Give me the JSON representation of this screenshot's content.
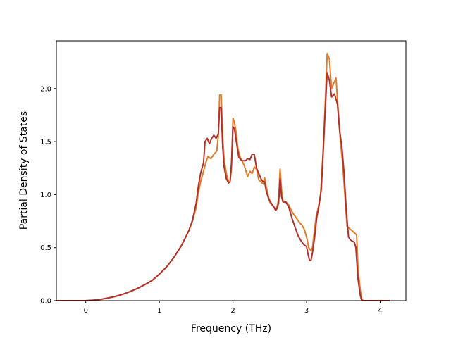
{
  "chart_data": {
    "type": "line",
    "title": "",
    "xlabel": "Frequency (THz)",
    "ylabel": "Partial Density of States",
    "xlim": [
      -0.4,
      4.35
    ],
    "ylim": [
      0.0,
      2.45
    ],
    "xticks": [
      {
        "value": 0,
        "label": "0"
      },
      {
        "value": 1,
        "label": "1"
      },
      {
        "value": 2,
        "label": "2"
      },
      {
        "value": 3,
        "label": "3"
      },
      {
        "value": 4,
        "label": "4"
      }
    ],
    "yticks": [
      {
        "value": 0.0,
        "label": "0.0"
      },
      {
        "value": 0.5,
        "label": "0.5"
      },
      {
        "value": 1.0,
        "label": "1.0"
      },
      {
        "value": 1.5,
        "label": "1.5"
      },
      {
        "value": 2.0,
        "label": "2.0"
      }
    ],
    "grid": false,
    "legend": "none",
    "series": [
      {
        "color": "#e07b2a",
        "points": [
          [
            -0.4,
            0
          ],
          [
            0,
            0
          ],
          [
            0.1,
            0.005
          ],
          [
            0.2,
            0.012
          ],
          [
            0.3,
            0.025
          ],
          [
            0.4,
            0.04
          ],
          [
            0.5,
            0.06
          ],
          [
            0.6,
            0.085
          ],
          [
            0.7,
            0.115
          ],
          [
            0.8,
            0.15
          ],
          [
            0.9,
            0.19
          ],
          [
            1.0,
            0.25
          ],
          [
            1.1,
            0.32
          ],
          [
            1.2,
            0.41
          ],
          [
            1.3,
            0.52
          ],
          [
            1.4,
            0.66
          ],
          [
            1.45,
            0.75
          ],
          [
            1.5,
            0.88
          ],
          [
            1.53,
            1.02
          ],
          [
            1.56,
            1.12
          ],
          [
            1.6,
            1.22
          ],
          [
            1.63,
            1.3
          ],
          [
            1.66,
            1.36
          ],
          [
            1.7,
            1.34
          ],
          [
            1.74,
            1.38
          ],
          [
            1.78,
            1.41
          ],
          [
            1.8,
            1.55
          ],
          [
            1.82,
            1.94
          ],
          [
            1.84,
            1.94
          ],
          [
            1.86,
            1.55
          ],
          [
            1.88,
            1.33
          ],
          [
            1.91,
            1.2
          ],
          [
            1.94,
            1.12
          ],
          [
            1.96,
            1.12
          ],
          [
            1.98,
            1.25
          ],
          [
            2.0,
            1.72
          ],
          [
            2.02,
            1.68
          ],
          [
            2.04,
            1.6
          ],
          [
            2.07,
            1.42
          ],
          [
            2.1,
            1.35
          ],
          [
            2.15,
            1.28
          ],
          [
            2.2,
            1.17
          ],
          [
            2.23,
            1.22
          ],
          [
            2.26,
            1.2
          ],
          [
            2.29,
            1.26
          ],
          [
            2.32,
            1.24
          ],
          [
            2.35,
            1.14
          ],
          [
            2.38,
            1.12
          ],
          [
            2.41,
            1.1
          ],
          [
            2.43,
            1.16
          ],
          [
            2.45,
            1.08
          ],
          [
            2.47,
            1.02
          ],
          [
            2.5,
            0.93
          ],
          [
            2.53,
            0.9
          ],
          [
            2.56,
            0.88
          ],
          [
            2.58,
            0.86
          ],
          [
            2.6,
            0.89
          ],
          [
            2.62,
            0.95
          ],
          [
            2.64,
            1.24
          ],
          [
            2.66,
            1.05
          ],
          [
            2.68,
            0.94
          ],
          [
            2.72,
            0.93
          ],
          [
            2.76,
            0.9
          ],
          [
            2.8,
            0.84
          ],
          [
            2.84,
            0.8
          ],
          [
            2.88,
            0.76
          ],
          [
            2.91,
            0.73
          ],
          [
            2.94,
            0.71
          ],
          [
            2.97,
            0.67
          ],
          [
            3.0,
            0.6
          ],
          [
            3.03,
            0.5
          ],
          [
            3.06,
            0.47
          ],
          [
            3.08,
            0.5
          ],
          [
            3.1,
            0.62
          ],
          [
            3.13,
            0.79
          ],
          [
            3.16,
            0.88
          ],
          [
            3.19,
            1.0
          ],
          [
            3.22,
            1.35
          ],
          [
            3.25,
            1.8
          ],
          [
            3.28,
            2.33
          ],
          [
            3.31,
            2.28
          ],
          [
            3.34,
            2.0
          ],
          [
            3.37,
            2.05
          ],
          [
            3.4,
            2.1
          ],
          [
            3.43,
            1.8
          ],
          [
            3.46,
            1.5
          ],
          [
            3.49,
            1.3
          ],
          [
            3.52,
            1.0
          ],
          [
            3.55,
            0.7
          ],
          [
            3.6,
            0.67
          ],
          [
            3.65,
            0.64
          ],
          [
            3.68,
            0.62
          ],
          [
            3.7,
            0.3
          ],
          [
            3.73,
            0.1
          ],
          [
            3.75,
            0.02
          ],
          [
            3.77,
            0
          ],
          [
            4.13,
            0
          ]
        ]
      },
      {
        "color": "#b5302a",
        "points": [
          [
            -0.4,
            0
          ],
          [
            0,
            0
          ],
          [
            0.1,
            0.005
          ],
          [
            0.2,
            0.012
          ],
          [
            0.3,
            0.025
          ],
          [
            0.4,
            0.04
          ],
          [
            0.5,
            0.06
          ],
          [
            0.6,
            0.085
          ],
          [
            0.7,
            0.115
          ],
          [
            0.8,
            0.15
          ],
          [
            0.9,
            0.19
          ],
          [
            1.0,
            0.25
          ],
          [
            1.1,
            0.32
          ],
          [
            1.2,
            0.41
          ],
          [
            1.3,
            0.52
          ],
          [
            1.4,
            0.66
          ],
          [
            1.45,
            0.76
          ],
          [
            1.5,
            0.92
          ],
          [
            1.53,
            1.08
          ],
          [
            1.56,
            1.2
          ],
          [
            1.6,
            1.3
          ],
          [
            1.62,
            1.5
          ],
          [
            1.65,
            1.53
          ],
          [
            1.68,
            1.48
          ],
          [
            1.71,
            1.53
          ],
          [
            1.74,
            1.56
          ],
          [
            1.77,
            1.53
          ],
          [
            1.8,
            1.57
          ],
          [
            1.82,
            1.82
          ],
          [
            1.84,
            1.82
          ],
          [
            1.86,
            1.45
          ],
          [
            1.88,
            1.26
          ],
          [
            1.91,
            1.15
          ],
          [
            1.94,
            1.11
          ],
          [
            1.96,
            1.12
          ],
          [
            1.98,
            1.3
          ],
          [
            2.0,
            1.64
          ],
          [
            2.02,
            1.62
          ],
          [
            2.05,
            1.48
          ],
          [
            2.08,
            1.35
          ],
          [
            2.12,
            1.32
          ],
          [
            2.17,
            1.32
          ],
          [
            2.2,
            1.34
          ],
          [
            2.23,
            1.33
          ],
          [
            2.26,
            1.38
          ],
          [
            2.29,
            1.38
          ],
          [
            2.32,
            1.25
          ],
          [
            2.35,
            1.2
          ],
          [
            2.38,
            1.15
          ],
          [
            2.41,
            1.12
          ],
          [
            2.43,
            1.12
          ],
          [
            2.45,
            1.04
          ],
          [
            2.48,
            0.97
          ],
          [
            2.51,
            0.93
          ],
          [
            2.55,
            0.89
          ],
          [
            2.58,
            0.85
          ],
          [
            2.6,
            0.87
          ],
          [
            2.62,
            0.92
          ],
          [
            2.64,
            1.15
          ],
          [
            2.66,
            0.98
          ],
          [
            2.68,
            0.93
          ],
          [
            2.72,
            0.93
          ],
          [
            2.76,
            0.88
          ],
          [
            2.8,
            0.78
          ],
          [
            2.84,
            0.7
          ],
          [
            2.88,
            0.62
          ],
          [
            2.92,
            0.57
          ],
          [
            2.96,
            0.53
          ],
          [
            3.0,
            0.51
          ],
          [
            3.02,
            0.44
          ],
          [
            3.04,
            0.38
          ],
          [
            3.06,
            0.38
          ],
          [
            3.08,
            0.45
          ],
          [
            3.11,
            0.6
          ],
          [
            3.14,
            0.79
          ],
          [
            3.17,
            0.9
          ],
          [
            3.2,
            1.05
          ],
          [
            3.23,
            1.45
          ],
          [
            3.25,
            1.75
          ],
          [
            3.28,
            2.15
          ],
          [
            3.31,
            2.08
          ],
          [
            3.34,
            1.92
          ],
          [
            3.38,
            1.95
          ],
          [
            3.42,
            1.85
          ],
          [
            3.45,
            1.6
          ],
          [
            3.48,
            1.45
          ],
          [
            3.51,
            1.2
          ],
          [
            3.54,
            0.85
          ],
          [
            3.57,
            0.6
          ],
          [
            3.6,
            0.57
          ],
          [
            3.65,
            0.55
          ],
          [
            3.67,
            0.5
          ],
          [
            3.7,
            0.2
          ],
          [
            3.73,
            0.05
          ],
          [
            3.75,
            0
          ],
          [
            4.13,
            0
          ]
        ]
      }
    ]
  }
}
